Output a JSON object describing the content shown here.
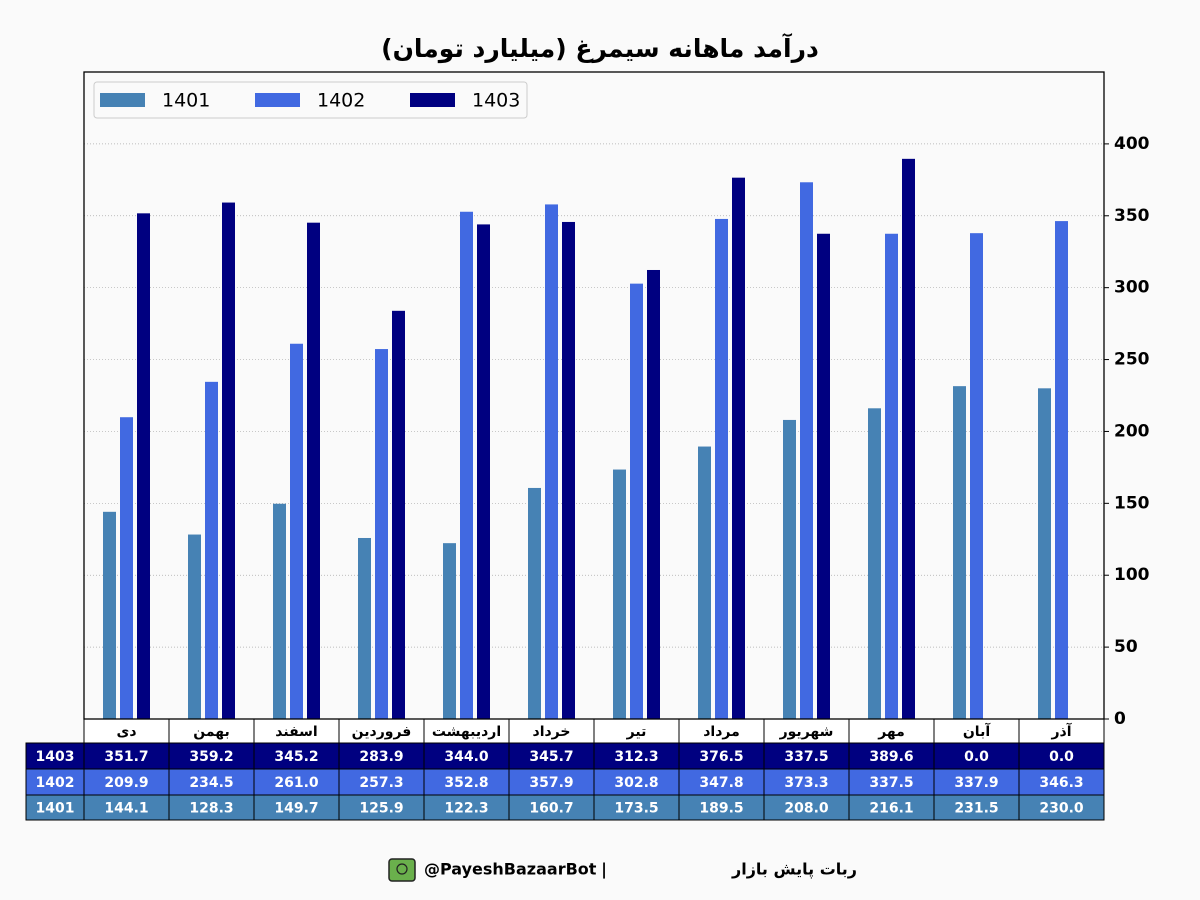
{
  "chart_data": {
    "type": "bar",
    "title": "درآمد ماهانه سیمرغ (میلیارد تومان)",
    "categories": [
      "دی",
      "بهمن",
      "اسفند",
      "فروردین",
      "اردیبهشت",
      "خرداد",
      "تیر",
      "مرداد",
      "شهریور",
      "مهر",
      "آبان",
      "آذر"
    ],
    "series": [
      {
        "name": "1401",
        "color": "#4682b4",
        "values": [
          144.1,
          128.3,
          149.7,
          125.9,
          122.3,
          160.7,
          173.5,
          189.5,
          208.0,
          216.1,
          231.5,
          230.0
        ],
        "value_labels": [
          "144.1",
          "128.3",
          "149.7",
          "125.9",
          "122.3",
          "160.7",
          "173.5",
          "189.5",
          "208.0",
          "216.1",
          "231.5",
          "230.0"
        ]
      },
      {
        "name": "1402",
        "color": "#4169e1",
        "values": [
          209.9,
          234.5,
          261.0,
          257.3,
          352.8,
          357.9,
          302.8,
          347.8,
          373.3,
          337.5,
          337.9,
          346.3
        ],
        "value_labels": [
          "209.9",
          "234.5",
          "261.0",
          "257.3",
          "352.8",
          "357.9",
          "302.8",
          "347.8",
          "373.3",
          "337.5",
          "337.9",
          "346.3"
        ]
      },
      {
        "name": "1403",
        "color": "#000080",
        "values": [
          351.7,
          359.2,
          345.2,
          283.9,
          344.0,
          345.7,
          312.3,
          376.5,
          337.5,
          389.6,
          0.0,
          0.0
        ],
        "value_labels": [
          "351.7",
          "359.2",
          "345.2",
          "283.9",
          "344.0",
          "345.7",
          "312.3",
          "376.5",
          "337.5",
          "389.6",
          "0.0",
          "0.0"
        ]
      }
    ],
    "ylim": [
      0,
      450
    ],
    "yticks": [
      0,
      50,
      100,
      150,
      200,
      250,
      300,
      350,
      400
    ],
    "grid": true,
    "legend": "upper left"
  },
  "footer": {
    "bot_name": "ربات پایش بازار",
    "separator": "|",
    "handle": "@PayeshBazaarBot"
  }
}
